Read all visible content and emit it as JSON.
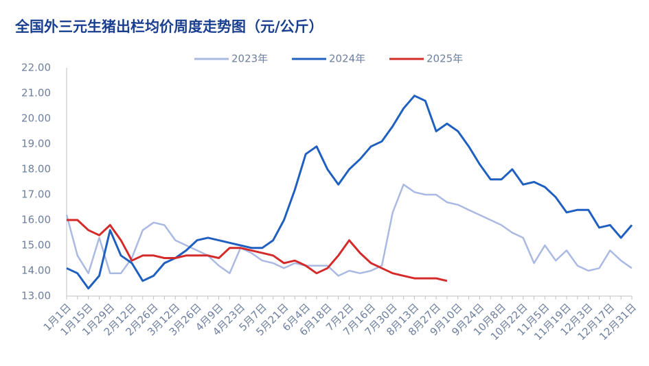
{
  "chart_data": {
    "type": "line",
    "title": "全国外三元生猪出栏均价周度走势图（元/公斤）",
    "categories": [
      "1月1日",
      null,
      "1月15日",
      null,
      "1月29日",
      null,
      "2月12日",
      null,
      "2月26日",
      null,
      "3月12日",
      null,
      "3月26日",
      null,
      "4月9日",
      null,
      "4月23日",
      null,
      "5月7日",
      null,
      "5月21日",
      null,
      "6月4日",
      null,
      "6月18日",
      null,
      "7月2日",
      null,
      "7月16日",
      null,
      "7月30日",
      null,
      "8月13日",
      null,
      "8月27日",
      null,
      "9月10日",
      null,
      "9月24日",
      null,
      "10月8日",
      null,
      "10月22日",
      null,
      "11月5日",
      null,
      "11月19日",
      null,
      "12月3日",
      null,
      "12月17日",
      null,
      "12月31日"
    ],
    "series": [
      {
        "name": "2023年",
        "color": "#a9b9e2",
        "values": [
          16.2,
          14.6,
          13.9,
          15.3,
          13.9,
          13.9,
          14.5,
          15.6,
          15.9,
          15.8,
          15.2,
          15.0,
          14.8,
          14.6,
          14.2,
          13.9,
          14.9,
          14.7,
          14.4,
          14.3,
          14.1,
          14.3,
          14.2,
          14.2,
          14.2,
          13.8,
          14.0,
          13.9,
          14.0,
          14.2,
          16.3,
          17.4,
          17.1,
          17.0,
          17.0,
          16.7,
          16.6,
          16.4,
          16.2,
          16.0,
          15.8,
          15.5,
          15.3,
          14.3,
          15.0,
          14.4,
          14.8,
          14.2,
          14.0,
          14.1,
          14.8,
          14.4,
          14.1
        ]
      },
      {
        "name": "2024年",
        "color": "#1f5fbf",
        "values": [
          14.1,
          13.9,
          13.3,
          13.8,
          15.6,
          14.6,
          14.3,
          13.6,
          13.8,
          14.3,
          14.5,
          14.8,
          15.2,
          15.3,
          15.2,
          15.1,
          15.0,
          14.9,
          14.9,
          15.2,
          16.0,
          17.2,
          18.6,
          18.9,
          18.0,
          17.4,
          18.0,
          18.4,
          18.9,
          19.1,
          19.7,
          20.4,
          20.9,
          20.7,
          19.5,
          19.8,
          19.5,
          18.9,
          18.2,
          17.6,
          17.6,
          18.0,
          17.4,
          17.5,
          17.3,
          16.9,
          16.3,
          16.4,
          16.4,
          15.7,
          15.8,
          15.3,
          15.8
        ]
      },
      {
        "name": "2025年",
        "color": "#d42a2a",
        "values": [
          16.0,
          16.0,
          15.6,
          15.4,
          15.8,
          15.2,
          14.4,
          14.6,
          14.6,
          14.5,
          14.5,
          14.6,
          14.6,
          14.6,
          14.5,
          14.9,
          14.9,
          14.8,
          14.7,
          14.6,
          14.3,
          14.4,
          14.2,
          13.9,
          14.1,
          14.6,
          15.2,
          14.7,
          14.3,
          14.1,
          13.9,
          13.8,
          13.7,
          13.7,
          13.7,
          13.6,
          null,
          null,
          null,
          null,
          null,
          null,
          null,
          null,
          null,
          null,
          null,
          null,
          null,
          null,
          null,
          null,
          null
        ]
      }
    ],
    "ylim": [
      13,
      22
    ],
    "yticks": [
      {
        "value": 13,
        "label": "13.00"
      },
      {
        "value": 14,
        "label": "14.00"
      },
      {
        "value": 15,
        "label": "15.00"
      },
      {
        "value": 16,
        "label": "16.00"
      },
      {
        "value": 17,
        "label": "17.00"
      },
      {
        "value": 18,
        "label": "18.00"
      },
      {
        "value": 19,
        "label": "19.00"
      },
      {
        "value": 20,
        "label": "20.00"
      },
      {
        "value": 21,
        "label": "21.00"
      },
      {
        "value": 22,
        "label": "22.00"
      }
    ],
    "grid": false,
    "legend": "top"
  }
}
